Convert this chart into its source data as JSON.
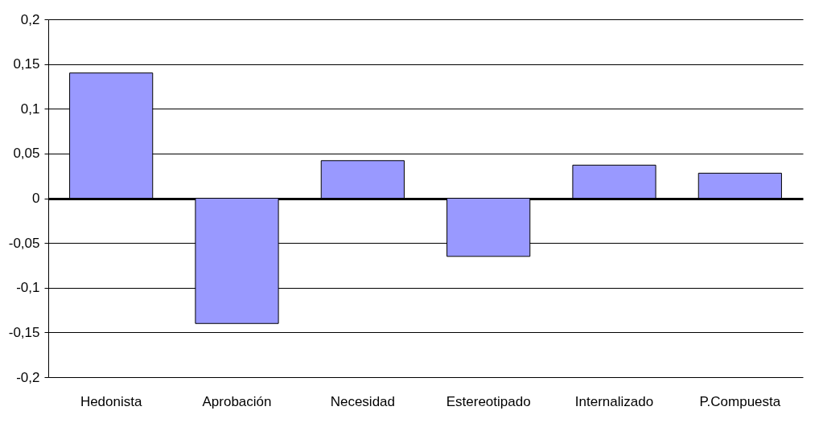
{
  "chart_data": {
    "type": "bar",
    "categories": [
      "Hedonista",
      "Aprobación",
      "Necesidad",
      "Estereotipado",
      "Internalizado",
      "P.Compuesta"
    ],
    "values": [
      0.14,
      -0.14,
      0.042,
      -0.065,
      0.037,
      0.028
    ],
    "color": "#9999ff",
    "ylim": [
      -0.2,
      0.2
    ],
    "yticks": [
      {
        "value": -0.2,
        "label": "-0,2"
      },
      {
        "value": -0.15,
        "label": "-0,15"
      },
      {
        "value": -0.1,
        "label": "-0,1"
      },
      {
        "value": -0.05,
        "label": "-0,05"
      },
      0,
      {
        "value": 0.05,
        "label": "0,05"
      },
      {
        "value": 0.1,
        "label": "0,1"
      },
      {
        "value": 0.15,
        "label": "0,15"
      },
      {
        "value": 0.2,
        "label": "0,2"
      }
    ],
    "grid": "y"
  }
}
